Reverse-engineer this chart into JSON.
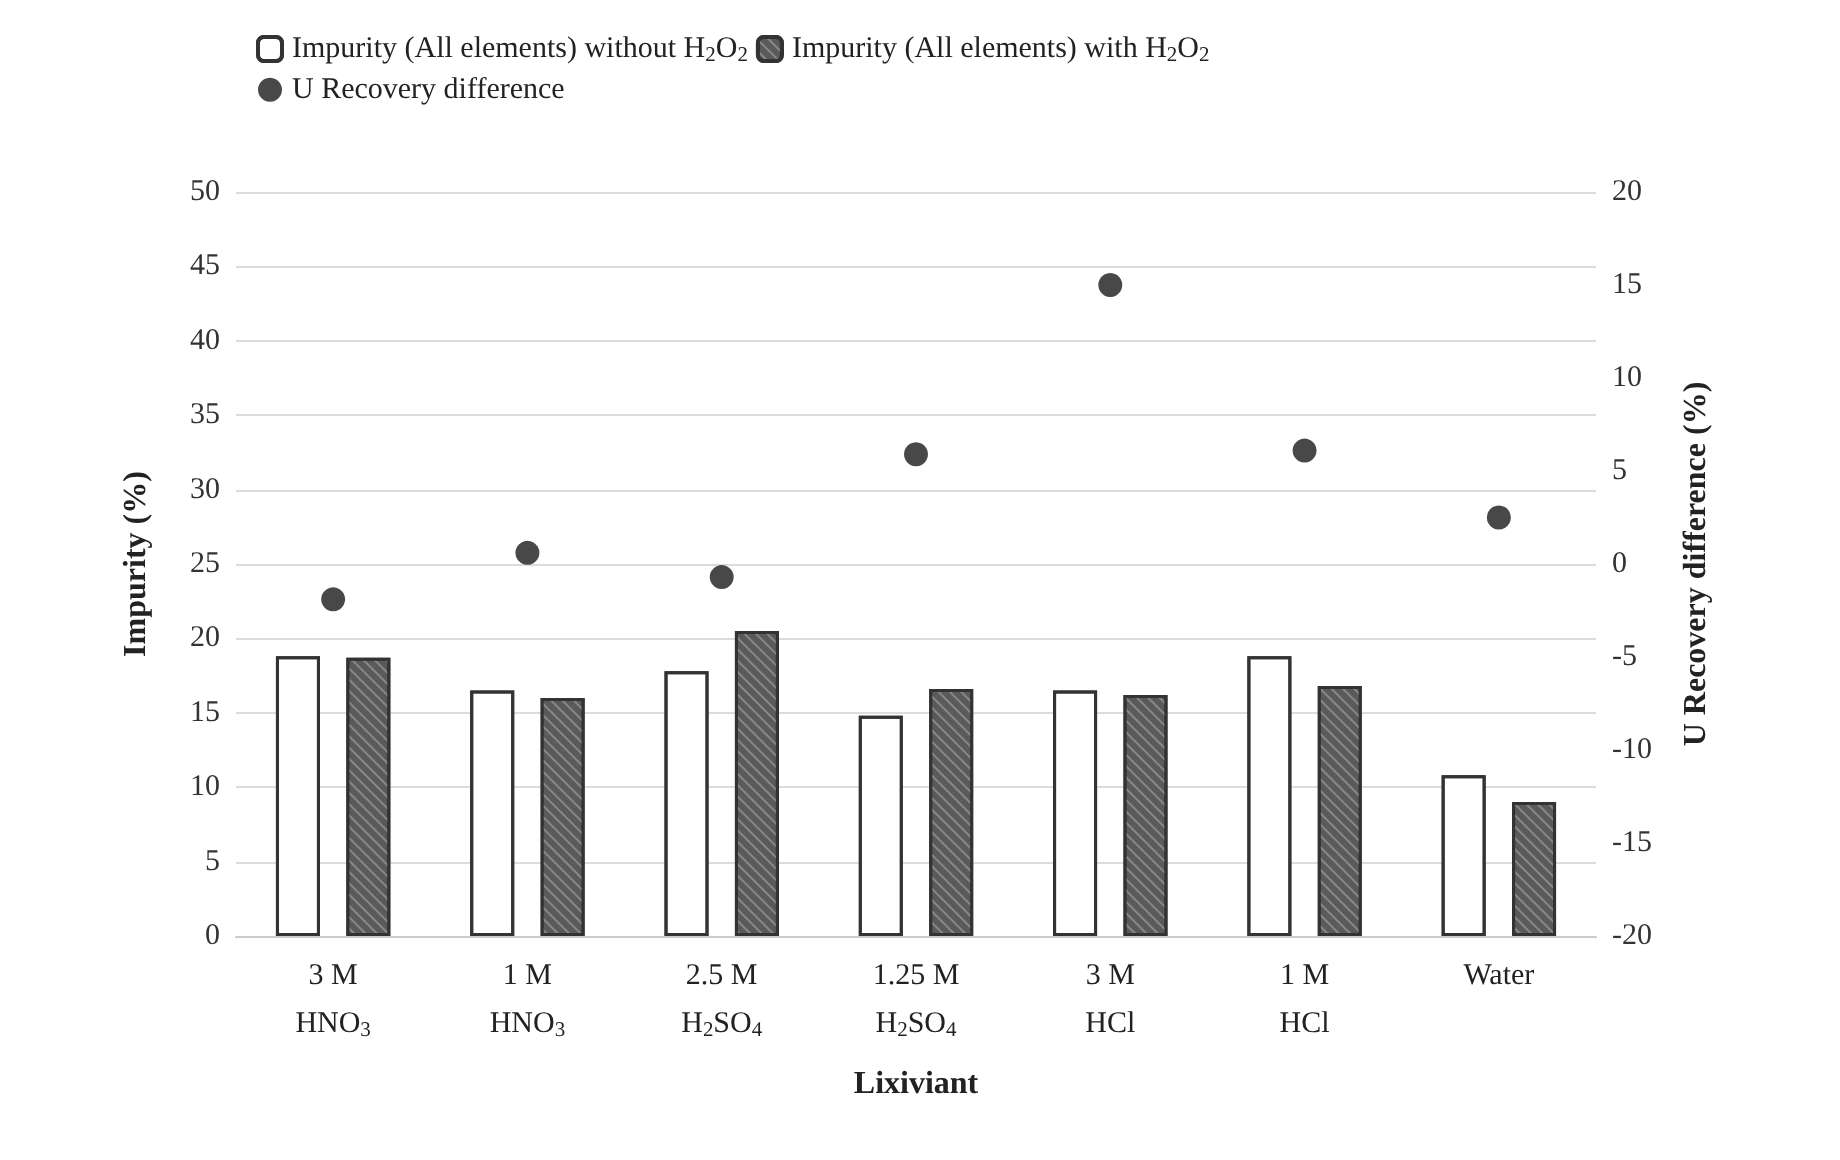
{
  "chart_data": {
    "type": "bar",
    "xlabel": "Lixiviant",
    "ylabel": "Impurity (%)",
    "y2label": "U Recovery difference (%)",
    "categories": [
      "3 M\nHNO$_{3}$",
      "1 M\nHNO$_{3}$",
      "2.5 M\nH$_{2}$SO$_{4}$",
      "1.25 M\nH$_{2}$SO$_{4}$",
      "3 M\nHCl",
      "1 M\nHCl",
      "Water"
    ],
    "series": [
      {
        "name": "Impurity (All elements) without H$_{2}$O$_{2}$",
        "color": "#ffffff",
        "values": [
          18.8,
          16.5,
          17.8,
          14.8,
          16.5,
          18.8,
          10.8
        ]
      },
      {
        "name": "Impurity (All elements) with H$_{2}$O$_{2}$",
        "color": "#5a5a5a",
        "values": [
          18.7,
          16.0,
          20.5,
          16.6,
          16.2,
          16.8,
          9.0
        ]
      },
      {
        "name": "U Recovery difference",
        "type": "scatter",
        "axis": "y2",
        "color": "#1a1a1a",
        "marker": "circle",
        "x": [
          "3 M\nHNO$_{3}$",
          "1 M\nHNO$_{3}$",
          "2.5 M\nH$_{2}$SO$_{4}$",
          "1.25 M\nH$_{2}$SO$_{4}$",
          "3 M\nHCl",
          "1 M\nHCl",
          "Water"
        ],
        "values": [
          -1.9,
          0.6,
          -0.7,
          5.9,
          15.0,
          6.1,
          2.5
        ]
      }
    ],
    "ylim": [
      0,
      50
    ],
    "yticks": [
      0,
      5,
      10,
      15,
      20,
      25,
      30,
      35,
      40,
      45,
      50
    ],
    "y2lim": [
      -20,
      20
    ],
    "y2ticks": [
      -20,
      -15,
      -10,
      -5,
      0,
      5,
      10,
      15,
      20
    ],
    "grid": "y",
    "legend": "top"
  }
}
